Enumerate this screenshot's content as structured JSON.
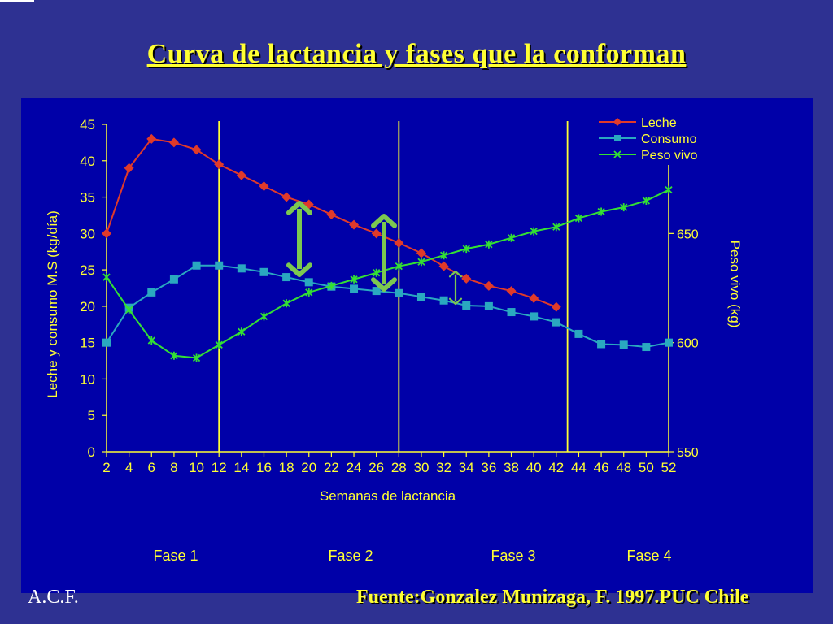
{
  "slide": {
    "title": "Curva de lactancia y fases que la conforman",
    "author": "A.C.F.",
    "source": "Fuente:Gonzalez Munizaga, F. 1997.PUC Chile"
  },
  "colors": {
    "background": "#2e3192",
    "plot_background": "#0000a8",
    "text": "#ffff33",
    "leche": "#e03a2a",
    "consumo": "#2aa8c0",
    "peso_vivo": "#33e033",
    "arrow": "#7cc850",
    "phase_line": "#ffff33"
  },
  "chart_data": {
    "type": "line",
    "title": "",
    "xlabel": "Semanas de lactancia",
    "ylabel_left": "Leche y consumo M.S (kg/día)",
    "ylabel_right": "Peso vivo (kg)",
    "x_ticks": [
      2,
      4,
      6,
      8,
      10,
      12,
      14,
      16,
      18,
      20,
      22,
      24,
      26,
      28,
      30,
      32,
      34,
      36,
      38,
      40,
      42,
      44,
      46,
      48,
      50,
      52
    ],
    "y_left_ticks": [
      0,
      5,
      10,
      15,
      20,
      25,
      30,
      35,
      40,
      45
    ],
    "y_left_range": [
      0,
      45
    ],
    "y_right_ticks": [
      550,
      600,
      650
    ],
    "y_right_range": [
      550,
      700
    ],
    "legend_position": "top-right",
    "legend": [
      "Leche",
      "Consumo",
      "Peso vivo"
    ],
    "phase_boundaries_weeks": [
      12,
      28,
      43
    ],
    "phases": [
      "Fase 1",
      "Fase 2",
      "Fase 3",
      "Fase 4"
    ],
    "series": [
      {
        "name": "Leche",
        "axis": "left",
        "marker": "diamond",
        "x": [
          2,
          4,
          6,
          8,
          10,
          12,
          14,
          16,
          18,
          20,
          22,
          24,
          26,
          28,
          30,
          32,
          34,
          36,
          38,
          40,
          42
        ],
        "values": [
          30,
          39,
          43,
          42.5,
          41.5,
          39.5,
          38,
          36.5,
          35,
          34,
          32.6,
          31.2,
          30,
          28.7,
          27.3,
          25.5,
          23.8,
          22.8,
          22.1,
          21.1,
          19.9
        ]
      },
      {
        "name": "Consumo",
        "axis": "left",
        "marker": "square",
        "x": [
          2,
          4,
          6,
          8,
          10,
          12,
          14,
          16,
          18,
          20,
          22,
          24,
          26,
          28,
          30,
          32,
          34,
          36,
          38,
          40,
          42,
          44,
          46,
          48,
          50,
          52
        ],
        "values": [
          15,
          19.8,
          21.9,
          23.7,
          25.6,
          25.6,
          25.2,
          24.7,
          24,
          23.3,
          22.7,
          22.4,
          22.1,
          21.8,
          21.3,
          20.8,
          20.1,
          20,
          19.2,
          18.6,
          17.8,
          16.2,
          14.8,
          14.7,
          14.4,
          15
        ]
      },
      {
        "name": "Peso vivo",
        "axis": "right",
        "marker": "star",
        "x": [
          2,
          4,
          6,
          8,
          10,
          12,
          14,
          16,
          18,
          20,
          22,
          24,
          26,
          28,
          30,
          32,
          34,
          36,
          38,
          40,
          42,
          44,
          46,
          48,
          50,
          52
        ],
        "values": [
          630,
          615,
          601,
          594,
          593,
          599,
          605,
          612,
          618,
          623,
          626,
          629,
          632,
          635,
          637,
          640,
          643,
          645,
          648,
          651,
          653,
          657,
          660,
          662,
          665,
          670
        ]
      }
    ]
  }
}
